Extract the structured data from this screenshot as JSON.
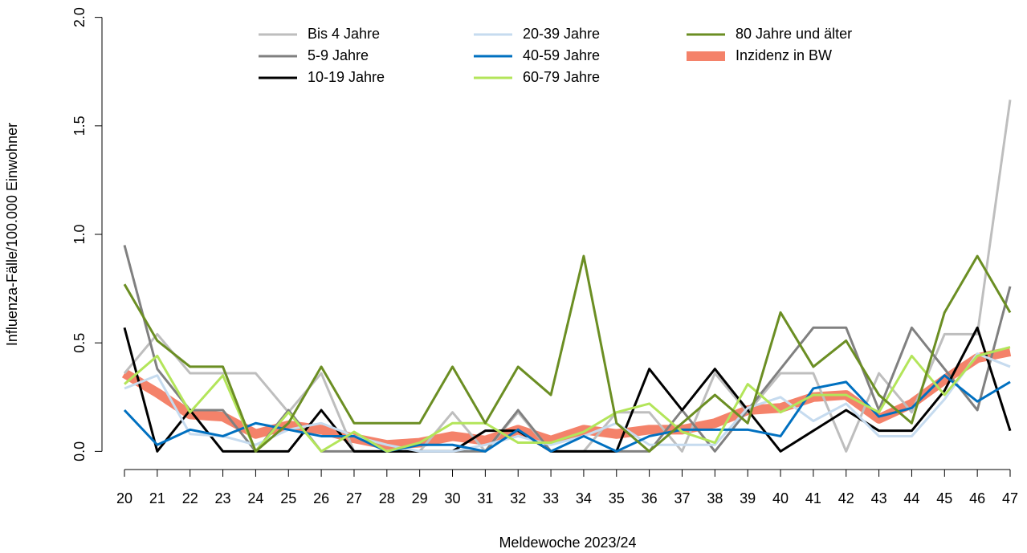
{
  "chart_data": {
    "type": "line",
    "x_label": "Meldewoche 2023/24",
    "y_label": "Influenza-Fälle/100.000 Einwohner",
    "categories": [
      "20",
      "21",
      "22",
      "23",
      "24",
      "25",
      "26",
      "27",
      "28",
      "29",
      "30",
      "31",
      "32",
      "33",
      "34",
      "35",
      "36",
      "37",
      "38",
      "39",
      "40",
      "41",
      "42",
      "43",
      "44",
      "45",
      "46",
      "47"
    ],
    "ylim": [
      -0.08,
      2.08
    ],
    "yticks": [
      {
        "value": 0,
        "label": "0.0"
      },
      {
        "value": 0.5,
        "label": "0.5"
      },
      {
        "value": 1,
        "label": "1.0"
      },
      {
        "value": 1.5,
        "label": "1.5"
      },
      {
        "value": 2,
        "label": "2.0"
      }
    ],
    "series": [
      {
        "name": "Bis 4 Jahre",
        "color": "#bebebe",
        "linewidth": 3,
        "values": [
          0.36,
          0.54,
          0.36,
          0.36,
          0.36,
          0.18,
          0.36,
          0.0,
          0.0,
          0.0,
          0.18,
          0.0,
          0.18,
          0.0,
          0.0,
          0.18,
          0.18,
          0.0,
          0.36,
          0.18,
          0.36,
          0.36,
          0.0,
          0.36,
          0.18,
          0.54,
          0.54,
          1.62
        ]
      },
      {
        "name": "5-9 Jahre",
        "color": "#808080",
        "linewidth": 3,
        "values": [
          0.95,
          0.38,
          0.19,
          0.19,
          0.0,
          0.19,
          0.0,
          0.0,
          0.0,
          0.0,
          0.0,
          0.0,
          0.19,
          0.0,
          0.0,
          0.0,
          0.0,
          0.19,
          0.0,
          0.19,
          0.38,
          0.57,
          0.57,
          0.19,
          0.57,
          0.38,
          0.19,
          0.76
        ]
      },
      {
        "name": "10-19 Jahre",
        "color": "#000000",
        "linewidth": 3,
        "values": [
          0.57,
          0.0,
          0.19,
          0.0,
          0.0,
          0.0,
          0.19,
          0.0,
          0.0,
          0.0,
          0.0,
          0.095,
          0.095,
          0.0,
          0.0,
          0.0,
          0.38,
          0.19,
          0.38,
          0.19,
          0.0,
          0.095,
          0.19,
          0.095,
          0.095,
          0.28,
          0.57,
          0.095
        ]
      },
      {
        "name": "20-39 Jahre",
        "color": "#c6dbef",
        "linewidth": 3,
        "values": [
          0.29,
          0.35,
          0.08,
          0.07,
          0.03,
          0.1,
          0.13,
          0.07,
          0.03,
          0.0,
          0.0,
          0.03,
          0.07,
          0.03,
          0.07,
          0.13,
          0.03,
          0.03,
          0.03,
          0.2,
          0.25,
          0.14,
          0.22,
          0.07,
          0.07,
          0.24,
          0.45,
          0.39
        ]
      },
      {
        "name": "40-59 Jahre",
        "color": "#0070c0",
        "linewidth": 3,
        "values": [
          0.19,
          0.03,
          0.1,
          0.07,
          0.13,
          0.1,
          0.07,
          0.07,
          0.0,
          0.03,
          0.03,
          0.0,
          0.1,
          0.0,
          0.07,
          0.0,
          0.07,
          0.1,
          0.1,
          0.1,
          0.07,
          0.29,
          0.32,
          0.16,
          0.2,
          0.35,
          0.23,
          0.32
        ]
      },
      {
        "name": "60-79 Jahre",
        "color": "#b3e55a",
        "linewidth": 3,
        "values": [
          0.31,
          0.44,
          0.18,
          0.35,
          0.0,
          0.18,
          0.0,
          0.09,
          0.0,
          0.04,
          0.13,
          0.13,
          0.04,
          0.04,
          0.09,
          0.18,
          0.22,
          0.09,
          0.04,
          0.31,
          0.18,
          0.26,
          0.26,
          0.18,
          0.44,
          0.26,
          0.44,
          0.48
        ]
      },
      {
        "name": "80 Jahre und älter",
        "color": "#6b8e23",
        "linewidth": 3,
        "values": [
          0.77,
          0.51,
          0.39,
          0.39,
          0.0,
          0.13,
          0.39,
          0.13,
          0.13,
          0.13,
          0.39,
          0.13,
          0.39,
          0.26,
          0.9,
          0.13,
          0.0,
          0.13,
          0.26,
          0.13,
          0.64,
          0.39,
          0.51,
          0.26,
          0.13,
          0.64,
          0.9,
          0.64
        ]
      },
      {
        "name": "Inzidenz in BW",
        "color": "#f4826a",
        "linewidth": 12,
        "values": [
          0.36,
          0.27,
          0.17,
          0.16,
          0.08,
          0.12,
          0.1,
          0.06,
          0.03,
          0.04,
          0.07,
          0.05,
          0.1,
          0.05,
          0.1,
          0.08,
          0.1,
          0.1,
          0.13,
          0.19,
          0.2,
          0.25,
          0.26,
          0.15,
          0.22,
          0.33,
          0.43,
          0.46
        ]
      }
    ]
  }
}
